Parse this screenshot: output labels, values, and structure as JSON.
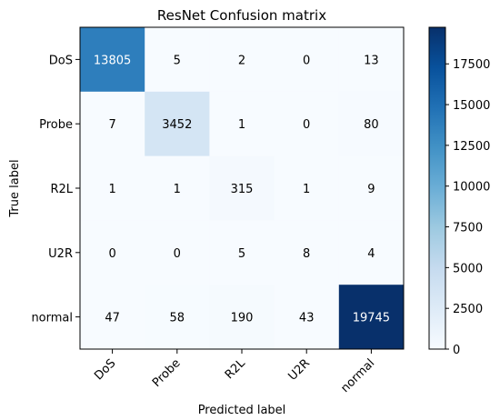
{
  "chart_data": {
    "type": "heatmap",
    "title": "ResNet Confusion matrix",
    "xlabel": "Predicted label",
    "ylabel": "True label",
    "x_categories": [
      "DoS",
      "Probe",
      "R2L",
      "U2R",
      "normal"
    ],
    "y_categories": [
      "DoS",
      "Probe",
      "R2L",
      "U2R",
      "normal"
    ],
    "values": [
      [
        13805,
        5,
        2,
        0,
        13
      ],
      [
        7,
        3452,
        1,
        0,
        80
      ],
      [
        1,
        1,
        315,
        1,
        9
      ],
      [
        0,
        0,
        5,
        8,
        4
      ],
      [
        47,
        58,
        190,
        43,
        19745
      ]
    ],
    "colormap": "Blues",
    "colorbar": {
      "min": 0,
      "max": 19745,
      "ticks": [
        0,
        2500,
        5000,
        7500,
        10000,
        12500,
        15000,
        17500
      ]
    },
    "grid": false
  }
}
